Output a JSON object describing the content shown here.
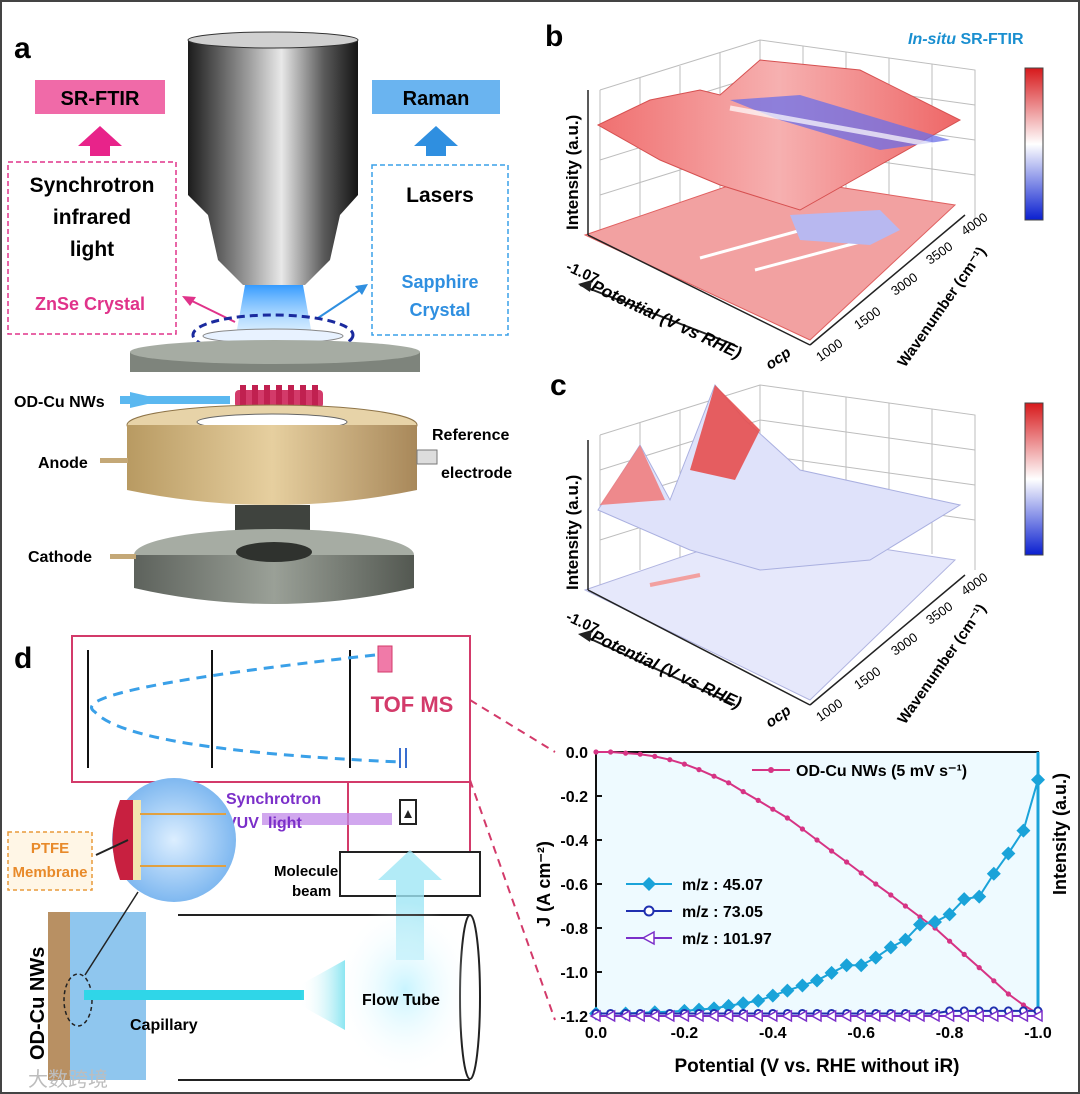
{
  "panel_labels": {
    "a": "a",
    "b": "b",
    "c": "c",
    "d": "d"
  },
  "panel_a": {
    "sr_ftir": "SR-FTIR",
    "raman": "Raman",
    "synchrotron_line1": "Synchrotron",
    "synchrotron_line2": "infrared",
    "synchrotron_line3": "light",
    "lasers": "Lasers",
    "znse": "ZnSe Crystal",
    "sapphire_line1": "Sapphire",
    "sapphire_line2": "Crystal",
    "odcu": "OD-Cu NWs",
    "reference_line1": "Reference",
    "reference_line2": "electrode",
    "anode": "Anode",
    "cathode": "Cathode"
  },
  "panel_b": {
    "title_italic": "In-situ",
    "title_rest": " SR-FTIR",
    "z_label": "Intensity (a.u.)",
    "potential_label": "Potential (V vs RHE)",
    "wavenumber_label": "Wavenumber (cm⁻¹)",
    "potential_start": "-1.07",
    "potential_end": "ocp",
    "wavenumber_ticks": [
      "1000",
      "1500",
      "3000",
      "3500",
      "4000"
    ]
  },
  "panel_c": {
    "z_label": "Intensity (a.u.)",
    "potential_label": "Potential (V vs RHE)",
    "wavenumber_label": "Wavenumber (cm⁻¹)",
    "potential_start": "-1.07",
    "potential_end": "ocp",
    "wavenumber_ticks": [
      "1000",
      "1500",
      "3000",
      "3500",
      "4000"
    ]
  },
  "panel_d": {
    "tof_ms": "TOF MS",
    "synchrotron": "Synchrotron",
    "vuv": "VUV",
    "light": "light",
    "ptfe_line1": "PTFE",
    "ptfe_line2": "Membrane",
    "molecule_line1": "Molecule",
    "molecule_line2": "beam",
    "odcu": "OD-Cu NWs",
    "capillary": "Capillary",
    "flow_tube": "Flow Tube"
  },
  "chart_data": {
    "type": "line",
    "x": [
      0.0,
      -0.033,
      -0.067,
      -0.1,
      -0.133,
      -0.167,
      -0.2,
      -0.233,
      -0.267,
      -0.3,
      -0.333,
      -0.367,
      -0.4,
      -0.433,
      -0.467,
      -0.5,
      -0.533,
      -0.567,
      -0.6,
      -0.633,
      -0.667,
      -0.7,
      -0.733,
      -0.767,
      -0.8,
      -0.833,
      -0.867,
      -0.9,
      -0.933,
      -0.967,
      -1.0
    ],
    "series": [
      {
        "name": "OD-Cu NWs (5 mV s⁻¹)",
        "axis": "left",
        "color": "#d63384",
        "marker": "circle",
        "values": [
          0.0,
          0.0,
          -0.005,
          -0.01,
          -0.02,
          -0.035,
          -0.055,
          -0.08,
          -0.11,
          -0.14,
          -0.18,
          -0.22,
          -0.26,
          -0.3,
          -0.35,
          -0.4,
          -0.45,
          -0.5,
          -0.55,
          -0.6,
          -0.65,
          -0.7,
          -0.75,
          -0.8,
          -0.86,
          -0.92,
          -0.98,
          -1.04,
          -1.1,
          -1.15,
          -1.19
        ]
      },
      {
        "name": "m/z : 45.07",
        "axis": "right",
        "color": "#1aa3d9",
        "marker": "diamond",
        "x": [
          0.0,
          -0.067,
          -0.133,
          -0.2,
          -0.233,
          -0.267,
          -0.3,
          -0.333,
          -0.367,
          -0.4,
          -0.433,
          -0.467,
          -0.5,
          -0.533,
          -0.567,
          -0.6,
          -0.633,
          -0.667,
          -0.7,
          -0.733,
          -0.767,
          -0.8,
          -0.833,
          -0.867,
          -0.9,
          -0.933,
          -0.967,
          -1.0
        ],
        "values": [
          0.01,
          0.01,
          0.015,
          0.02,
          0.025,
          0.03,
          0.04,
          0.05,
          0.06,
          0.08,
          0.1,
          0.12,
          0.14,
          0.17,
          0.2,
          0.2,
          0.23,
          0.27,
          0.3,
          0.36,
          0.37,
          0.4,
          0.46,
          0.47,
          0.56,
          0.64,
          0.73,
          0.93
        ]
      },
      {
        "name": "m/z : 73.05",
        "axis": "right",
        "color": "#1f2fb0",
        "marker": "circle-open",
        "values": [
          0.01,
          0.01,
          0.01,
          0.01,
          0.01,
          0.01,
          0.01,
          0.01,
          0.01,
          0.01,
          0.01,
          0.01,
          0.01,
          0.01,
          0.01,
          0.01,
          0.01,
          0.01,
          0.01,
          0.01,
          0.01,
          0.01,
          0.01,
          0.01,
          0.02,
          0.02,
          0.02,
          0.02,
          0.02,
          0.02,
          0.02
        ]
      },
      {
        "name": "m/z : 101.97",
        "axis": "right",
        "color": "#7b2fc9",
        "marker": "triangle-left",
        "values": [
          0.0,
          0.0,
          0.0,
          0.0,
          0.0,
          0.0,
          0.0,
          0.0,
          0.0,
          0.0,
          0.0,
          0.0,
          0.0,
          0.0,
          0.0,
          0.0,
          0.0,
          0.0,
          0.0,
          0.0,
          0.0,
          0.0,
          0.0,
          0.0,
          0.0,
          0.0,
          0.0,
          0.0,
          0.0,
          0.0,
          0.0
        ]
      }
    ],
    "title": "",
    "xlabel": "Potential (V vs. RHE without iR)",
    "ylabel": "J (A cm⁻²)",
    "y2label": "Intensity (a.u.)",
    "xlim": [
      0.0,
      -1.0
    ],
    "ylim": [
      -1.2,
      0.0
    ],
    "x_ticks": [
      "0.0",
      "-0.2",
      "-0.4",
      "-0.6",
      "-0.8",
      "-1.0"
    ],
    "y_ticks": [
      "0.0",
      "-0.2",
      "-0.4",
      "-0.6",
      "-0.8",
      "-1.0",
      "-1.2"
    ],
    "legend_position": "center-left"
  },
  "watermark": "大数跨境"
}
